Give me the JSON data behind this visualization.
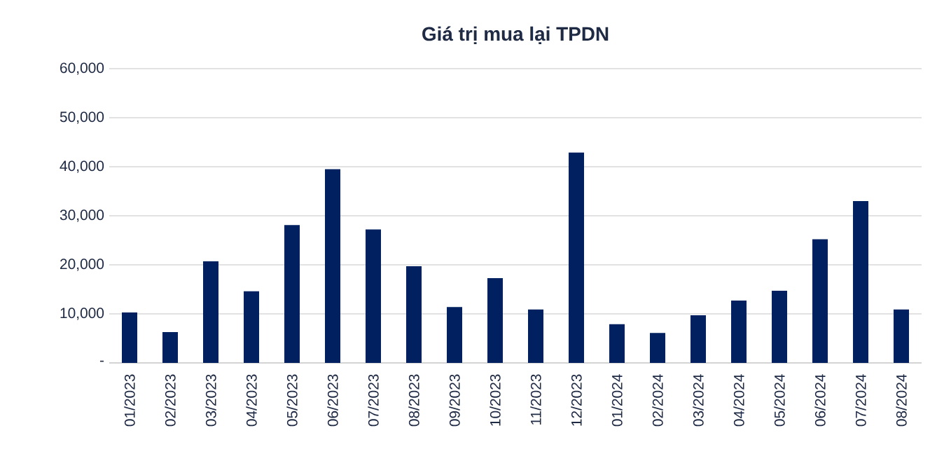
{
  "chart_data": {
    "type": "bar",
    "title": "Giá trị mua lại TPDN",
    "categories": [
      "01/2023",
      "02/2023",
      "03/2023",
      "04/2023",
      "05/2023",
      "06/2023",
      "07/2023",
      "08/2023",
      "09/2023",
      "10/2023",
      "11/2023",
      "12/2023",
      "01/2024",
      "02/2024",
      "03/2024",
      "04/2024",
      "05/2024",
      "06/2024",
      "07/2024",
      "08/2024"
    ],
    "values": [
      10300,
      6300,
      20700,
      14600,
      28100,
      39500,
      27200,
      19700,
      11400,
      17300,
      10900,
      42900,
      7900,
      6100,
      9700,
      12700,
      14700,
      25200,
      33000,
      10900
    ],
    "color": "#002060",
    "ylim": [
      0,
      60000
    ],
    "yticks": [
      {
        "value": 0,
        "label": "-"
      },
      {
        "value": 10000,
        "label": "10,000"
      },
      {
        "value": 20000,
        "label": "20,000"
      },
      {
        "value": 30000,
        "label": "30,000"
      },
      {
        "value": 40000,
        "label": "40,000"
      },
      {
        "value": 50000,
        "label": "50,000"
      },
      {
        "value": 60000,
        "label": "60,000"
      }
    ],
    "grid": "y"
  }
}
